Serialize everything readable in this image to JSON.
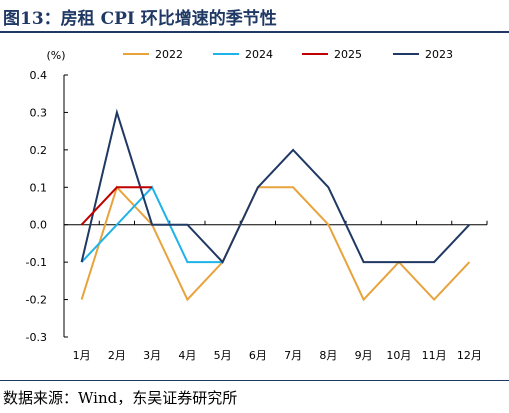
{
  "header": {
    "title": "图13：房租 CPI 环比增速的季节性"
  },
  "footer": {
    "source": "数据来源：Wind，东吴证券研究所"
  },
  "chart_data": {
    "type": "line",
    "unit_label": "(%)",
    "categories": [
      "1月",
      "2月",
      "3月",
      "4月",
      "5月",
      "6月",
      "7月",
      "8月",
      "9月",
      "10月",
      "11月",
      "12月"
    ],
    "ylim": [
      -0.3,
      0.4
    ],
    "yticks": [
      "0.4",
      "0.3",
      "0.2",
      "0.1",
      "0.0",
      "-0.1",
      "-0.2",
      "-0.3"
    ],
    "ytick_values": [
      0.4,
      0.3,
      0.2,
      0.1,
      0.0,
      -0.1,
      -0.2,
      -0.3
    ],
    "grid": false,
    "legend_position": "top",
    "series": [
      {
        "name": "2022",
        "color": "#e8a33d",
        "values": [
          -0.2,
          0.1,
          0.0,
          -0.2,
          -0.1,
          0.1,
          0.1,
          0.0,
          -0.2,
          -0.1,
          -0.2,
          -0.1
        ]
      },
      {
        "name": "2024",
        "color": "#1fb3e8",
        "values": [
          -0.1,
          0.0,
          0.1,
          -0.1,
          -0.1,
          null,
          null,
          null,
          null,
          null,
          null,
          null
        ]
      },
      {
        "name": "2025",
        "color": "#c00000",
        "values": [
          0.0,
          0.1,
          0.1,
          null,
          null,
          null,
          null,
          null,
          null,
          null,
          null,
          null
        ]
      },
      {
        "name": "2023",
        "color": "#1f3864",
        "values": [
          -0.1,
          0.3,
          0.0,
          0.0,
          -0.1,
          0.1,
          0.2,
          0.1,
          -0.1,
          -0.1,
          -0.1,
          0.0
        ]
      }
    ],
    "legend_order": [
      "2022",
      "2024",
      "2025",
      "2023"
    ]
  }
}
